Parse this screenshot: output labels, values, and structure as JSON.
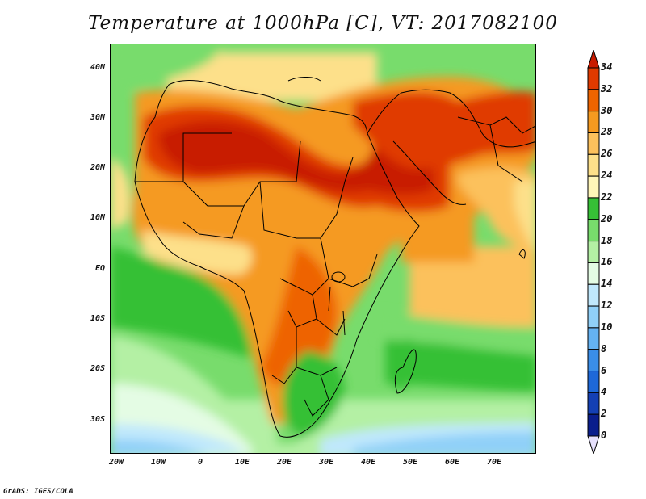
{
  "title": "Temperature at 1000hPa [C], VT: 2017082100",
  "credit": "GrADS: IGES/COLA",
  "map": {
    "variable": "Temperature at 1000hPa",
    "units": "C",
    "valid_time": "2017082100",
    "lon_range": [
      -22,
      80
    ],
    "lat_range": [
      -36,
      46
    ],
    "lat_ticks": [
      "40N",
      "30N",
      "20N",
      "10N",
      "EQ",
      "10S",
      "20S",
      "30S"
    ],
    "lon_ticks": [
      "20W",
      "10W",
      "0",
      "10E",
      "20E",
      "30E",
      "40E",
      "50E",
      "60E",
      "70E"
    ]
  },
  "legend": {
    "levels": [
      "34",
      "32",
      "30",
      "28",
      "26",
      "24",
      "22",
      "20",
      "18",
      "16",
      "14",
      "12",
      "10",
      "8",
      "6",
      "4",
      "2",
      "0"
    ],
    "colors": [
      "#c81a00",
      "#e03a00",
      "#ee6400",
      "#f59a20",
      "#fcc15c",
      "#fde08a",
      "#fff6b8",
      "#36c036",
      "#78dc6c",
      "#b4f0a4",
      "#e4fce4",
      "#c0e8fc",
      "#90d0f8",
      "#64b2f2",
      "#3a8ee8",
      "#1e68d8",
      "#1440b4",
      "#0a1e8c",
      "#06105a"
    ],
    "over_color": "#c81a00",
    "under_color": "#e6e0fc"
  }
}
